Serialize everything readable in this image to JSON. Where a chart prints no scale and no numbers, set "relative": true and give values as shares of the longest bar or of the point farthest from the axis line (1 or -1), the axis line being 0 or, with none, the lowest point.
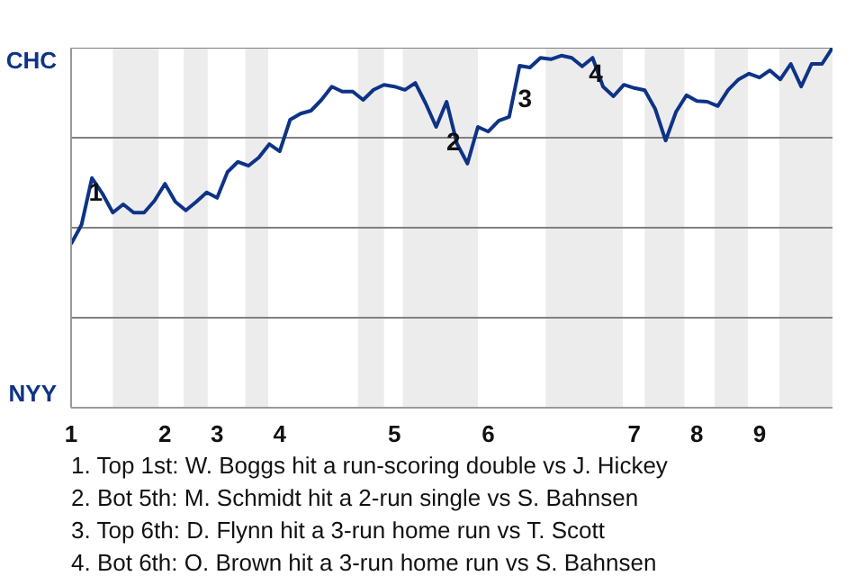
{
  "chart_data": {
    "type": "line",
    "relative": true,
    "categories": [
      "1",
      null,
      null,
      null,
      null,
      null,
      null,
      null,
      null,
      "2",
      null,
      null,
      null,
      null,
      "3",
      null,
      null,
      null,
      null,
      null,
      "4",
      null,
      null,
      null,
      null,
      null,
      null,
      null,
      null,
      null,
      null,
      "5",
      null,
      null,
      null,
      null,
      null,
      null,
      null,
      null,
      "6",
      null,
      null,
      null,
      null,
      null,
      null,
      null,
      null,
      null,
      null,
      null,
      null,
      null,
      "7",
      null,
      null,
      null,
      null,
      null,
      "8",
      null,
      null,
      null,
      null,
      null,
      "9",
      null,
      null,
      null,
      null,
      null,
      null,
      null
    ],
    "series": [
      {
        "color": "#0e3386",
        "values": [
          0.455,
          0.508,
          0.638,
          0.595,
          0.542,
          0.565,
          0.542,
          0.542,
          0.575,
          0.622,
          0.572,
          0.548,
          0.572,
          0.598,
          0.583,
          0.655,
          0.683,
          0.672,
          0.695,
          0.732,
          0.712,
          0.8,
          0.817,
          0.825,
          0.855,
          0.892,
          0.878,
          0.878,
          0.855,
          0.883,
          0.897,
          0.892,
          0.883,
          0.902,
          0.845,
          0.78,
          0.85,
          0.733,
          0.678,
          0.78,
          0.767,
          0.797,
          0.808,
          0.95,
          0.945,
          0.972,
          0.968,
          0.978,
          0.972,
          0.948,
          0.972,
          0.892,
          0.865,
          0.897,
          0.888,
          0.882,
          0.83,
          0.742,
          0.822,
          0.868,
          0.852,
          0.85,
          0.838,
          0.883,
          0.912,
          0.928,
          0.917,
          0.937,
          0.912,
          0.955,
          0.892,
          0.955,
          0.955,
          1
        ]
      }
    ],
    "grid": false,
    "line_style": "solid",
    "ref_lines": [
      {
        "axis": "y",
        "value": 0.25,
        "color": "#808080"
      },
      {
        "axis": "y",
        "value": 0.5,
        "color": "#808080"
      },
      {
        "axis": "y",
        "value": 0.75,
        "color": "#808080"
      },
      {
        "axis": "y",
        "value": 1,
        "color": "#808080"
      }
    ],
    "annotations": [
      "CHC",
      "NYY",
      "1",
      "2",
      "3",
      "4",
      "1. Top 1st: W. Boggs hit a run-scoring double vs J. Hickey",
      "2. Bot 5th: M. Schmidt hit a 2-run single vs S. Bahnsen",
      "3. Top 6th: D. Flynn hit a 3-run home run vs T. Scott",
      "4. Bot 6th: O. Brown hit a 3-run home run vs S. Bahnsen"
    ]
  }
}
